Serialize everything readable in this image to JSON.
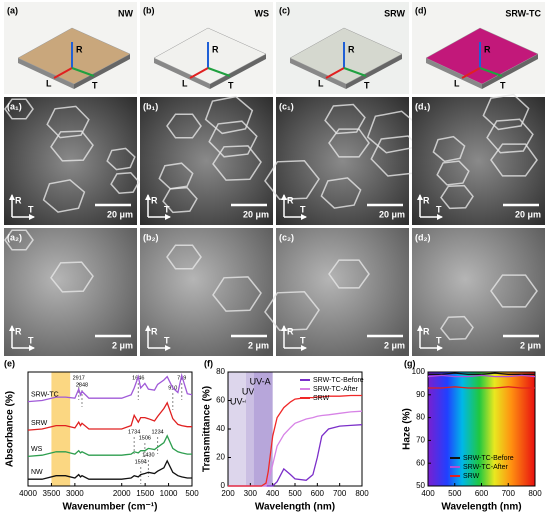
{
  "photos": [
    {
      "label": "(a)",
      "name": "NW",
      "color": "#c9a77c"
    },
    {
      "label": "(b)",
      "name": "WS",
      "color": "#f1f1ee"
    },
    {
      "label": "(c)",
      "name": "SRW",
      "color": "#d5d8cf"
    },
    {
      "label": "(d)",
      "name": "SRW-TC",
      "color": "#c2187a"
    }
  ],
  "sem_low": [
    {
      "label": "(a₁)",
      "scale": "20 μm"
    },
    {
      "label": "(b₁)",
      "scale": "20 μm"
    },
    {
      "label": "(c₁)",
      "scale": "20 μm"
    },
    {
      "label": "(d₁)",
      "scale": "20 μm"
    }
  ],
  "sem_high": [
    {
      "label": "(a₂)",
      "scale": "2 μm"
    },
    {
      "label": "(b₂)",
      "scale": "2 μm"
    },
    {
      "label": "(c₂)",
      "scale": "2 μm"
    },
    {
      "label": "(d₂)",
      "scale": "2 μm"
    }
  ],
  "directions": {
    "r": "R",
    "l": "L",
    "t": "T"
  },
  "chart_data": [
    {
      "type": "line",
      "panel_label": "(e)",
      "xlabel": "Wavenumber (cm⁻¹)",
      "ylabel": "Absorbance (%)",
      "xlim": [
        4000,
        500
      ],
      "ylim": [
        0,
        10
      ],
      "xticks": [
        4000,
        3500,
        3000,
        2000,
        1500,
        1000,
        500
      ],
      "highlight": [
        3500,
        3100
      ],
      "x": [
        4000,
        3700,
        3400,
        3200,
        3000,
        2917,
        2880,
        2848,
        2700,
        2000,
        1800,
        1734,
        1646,
        1594,
        1506,
        1430,
        1300,
        1234,
        1100,
        1030,
        910,
        800,
        719,
        600,
        500
      ],
      "series": [
        {
          "name": "NW",
          "color": "#111111",
          "values": [
            0.6,
            0.6,
            0.9,
            0.9,
            0.7,
            1.0,
            0.8,
            0.9,
            0.6,
            0.6,
            0.7,
            0.9,
            0.8,
            1.0,
            1.1,
            1.2,
            1.1,
            1.3,
            1.6,
            2.2,
            1.2,
            0.9,
            0.8,
            0.7,
            0.7
          ]
        },
        {
          "name": "WS",
          "color": "#2e9e4f",
          "values": [
            2.6,
            2.7,
            3.0,
            3.0,
            2.8,
            3.1,
            2.9,
            3.0,
            2.7,
            2.7,
            2.8,
            3.0,
            2.9,
            3.1,
            3.1,
            3.3,
            3.2,
            3.4,
            3.8,
            4.4,
            3.3,
            3.0,
            2.9,
            2.8,
            2.8
          ]
        },
        {
          "name": "SRW",
          "color": "#e02020",
          "values": [
            4.9,
            5.0,
            5.3,
            5.3,
            5.1,
            5.6,
            5.3,
            5.5,
            5.0,
            5.0,
            5.3,
            6.2,
            5.6,
            6.0,
            6.0,
            5.9,
            5.7,
            6.1,
            6.8,
            7.3,
            5.9,
            5.4,
            5.3,
            5.2,
            5.2
          ]
        },
        {
          "name": "SRW-TC",
          "color": "#a05ad8",
          "values": [
            7.4,
            7.5,
            7.8,
            7.8,
            7.7,
            8.5,
            8.0,
            8.3,
            7.7,
            7.7,
            8.0,
            8.6,
            9.6,
            8.6,
            9.0,
            8.5,
            8.4,
            8.9,
            9.3,
            9.6,
            8.6,
            8.2,
            9.7,
            8.1,
            8.0
          ]
        }
      ],
      "peaks": [
        2917,
        2848,
        1646,
        910,
        719,
        1734,
        1506,
        1234,
        1594,
        1430
      ]
    },
    {
      "type": "line",
      "panel_label": "(f)",
      "xlabel": "Wavelength (nm)",
      "ylabel": "Transmittance (%)",
      "xlim": [
        200,
        800
      ],
      "ylim": [
        0,
        80
      ],
      "xticks": [
        200,
        300,
        400,
        500,
        600,
        700,
        800
      ],
      "yticks": [
        0,
        20,
        40,
        60,
        80
      ],
      "regions": [
        {
          "name": "UV-C",
          "range": [
            200,
            280
          ],
          "color": "#ddd6ec"
        },
        {
          "name": "UV-B",
          "range": [
            280,
            315
          ],
          "color": "#cbbfe3"
        },
        {
          "name": "UV-A",
          "range": [
            315,
            400
          ],
          "color": "#b7a6da"
        }
      ],
      "x": [
        200,
        250,
        300,
        350,
        370,
        380,
        400,
        420,
        450,
        480,
        500,
        550,
        580,
        600,
        620,
        650,
        700,
        750,
        800
      ],
      "series": [
        {
          "name": "SRW-TC-Before",
          "color": "#7b2fc9",
          "values": [
            0,
            0,
            0,
            0,
            0,
            0,
            0,
            3,
            12,
            8,
            5,
            4,
            8,
            20,
            35,
            40,
            42,
            42.5,
            43
          ]
        },
        {
          "name": "SRW-TC-After",
          "color": "#d783e6",
          "values": [
            0,
            0,
            0,
            0,
            0,
            3,
            15,
            28,
            36,
            41,
            44,
            47,
            48,
            49,
            49.5,
            50,
            51,
            52,
            52.5
          ]
        },
        {
          "name": "SRW",
          "color": "#f02828",
          "values": [
            0,
            0,
            0,
            0,
            2,
            10,
            35,
            48,
            55,
            59,
            61,
            62,
            62,
            62.5,
            62.5,
            63,
            63,
            63.5,
            63.5
          ]
        }
      ]
    },
    {
      "type": "line",
      "panel_label": "(g)",
      "xlabel": "Wavelength (nm)",
      "ylabel": "Haze (%)",
      "xlim": [
        400,
        800
      ],
      "ylim": [
        50,
        100
      ],
      "xticks": [
        400,
        500,
        600,
        700,
        800
      ],
      "yticks": [
        50,
        60,
        70,
        80,
        90,
        100
      ],
      "background": "spectrum",
      "x": [
        400,
        450,
        500,
        550,
        600,
        650,
        700,
        750,
        800
      ],
      "series": [
        {
          "name": "SRW-TC-Before",
          "color": "#111111",
          "values": [
            99,
            99,
            99.5,
            99,
            99,
            99.5,
            99,
            99,
            99
          ]
        },
        {
          "name": "SRW-TC-After",
          "color": "#b04ed8",
          "values": [
            98,
            98.5,
            98,
            98,
            98.5,
            98,
            98,
            98.5,
            98
          ]
        },
        {
          "name": "SRW",
          "color": "#e02020",
          "values": [
            93,
            93,
            93.5,
            93,
            93,
            93,
            93.5,
            93,
            93
          ]
        }
      ]
    }
  ]
}
